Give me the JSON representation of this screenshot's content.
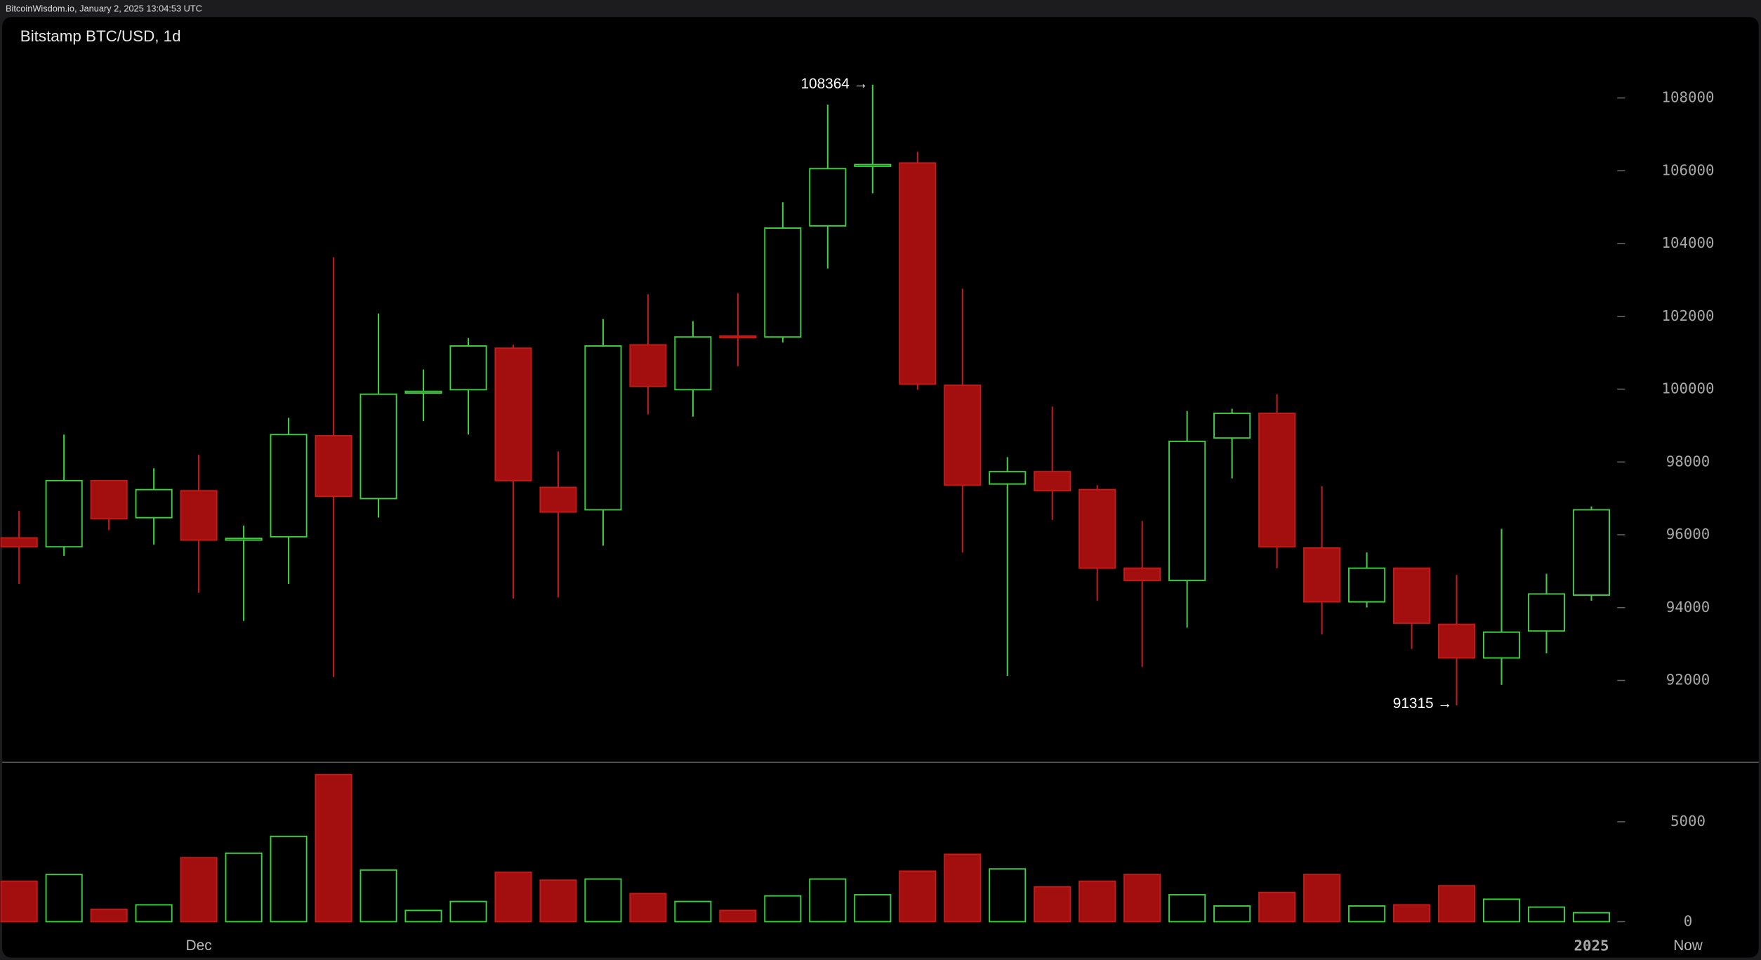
{
  "chart_data": {
    "type": "candlestick",
    "source": "BitcoinWisdom.io, January 2, 2025 13:04:53 UTC",
    "title": "Bitstamp BTC/USD, 1d",
    "categories": [
      null,
      null,
      null,
      null,
      "Dec",
      null,
      null,
      null,
      null,
      null,
      null,
      null,
      null,
      null,
      null,
      null,
      null,
      null,
      null,
      null,
      null,
      null,
      null,
      null,
      null,
      null,
      null,
      null,
      null,
      null,
      null,
      null,
      null,
      null,
      null,
      "2025"
    ],
    "now_label": "Now",
    "open": [
      95915,
      95670,
      97488,
      96470,
      97210,
      95880,
      95946,
      98721,
      96994,
      99900,
      99985,
      101126,
      97303,
      96686,
      101218,
      99985,
      101460,
      101434,
      104486,
      106130,
      106213,
      100108,
      97395,
      97734,
      97241,
      95083,
      94744,
      98659,
      99337,
      95638,
      94158,
      95083,
      93541,
      92617,
      93357,
      94343
    ],
    "high": [
      96655,
      98752,
      97488,
      97827,
      98197,
      96255,
      99214,
      103623,
      102081,
      100540,
      101403,
      101218,
      98289,
      101927,
      102606,
      101866,
      102637,
      105134,
      107816,
      108364,
      106521,
      102760,
      98135,
      99523,
      97364,
      96378,
      99399,
      99461,
      99862,
      97333,
      95515,
      95083,
      94898,
      96162,
      94929,
      96779
    ],
    "low": [
      94650,
      95422,
      96131,
      95730,
      94405,
      93634,
      94651,
      92092,
      96470,
      99122,
      98752,
      94250,
      94281,
      95700,
      99307,
      99245,
      100632,
      101280,
      103314,
      105380,
      99985,
      95515,
      92123,
      96409,
      94189,
      92370,
      93449,
      97549,
      95083,
      93264,
      94004,
      92863,
      91315,
      91877,
      92740,
      94189
    ],
    "close": [
      95670,
      97488,
      96440,
      97241,
      95854,
      95900,
      98752,
      97056,
      99862,
      99940,
      101187,
      97488,
      96625,
      101187,
      100077,
      101434,
      101420,
      104425,
      106058,
      106170,
      100139,
      97364,
      97734,
      97210,
      95083,
      94744,
      98567,
      99337,
      95669,
      94158,
      95083,
      93572,
      92617,
      93326,
      94374,
      96686
    ],
    "volume": [
      2022,
      2360,
      618,
      843,
      3202,
      3427,
      4270,
      7360,
      2584,
      562,
      1011,
      2472,
      2079,
      2135,
      1404,
      1011,
      562,
      1292,
      2135,
      1348,
      2528,
      3371,
      2640,
      1742,
      2022,
      2360,
      1348,
      787,
      1461,
      2360,
      787,
      843,
      1798,
      1124,
      730,
      449
    ],
    "up_color": "#3ecf3e",
    "down_color": "#a30f0f",
    "ylim": [
      89750,
      110070
    ],
    "yticks": [
      92000,
      94000,
      96000,
      98000,
      100000,
      102000,
      104000,
      106000,
      108000
    ],
    "volume_ylim": [
      0,
      7920
    ],
    "volume_yticks": [
      0,
      5000
    ],
    "annotations": [
      {
        "value": 108364,
        "label": "108364 →"
      },
      {
        "value": 91315,
        "label": "91315 →"
      }
    ]
  }
}
